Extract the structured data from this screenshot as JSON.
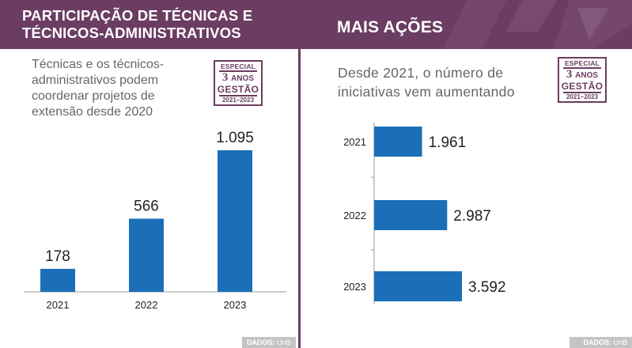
{
  "left": {
    "header": {
      "title_line1": "PARTICIPAÇÃO DE TÉCNICAS E",
      "title_line2": "TÉCNICOS-ADMINISTRATIVOS"
    },
    "subtitle_lines": [
      "Técnicas e os técnicos-",
      "administrativos podem",
      "coordenar projetos de",
      "extensão desde 2020"
    ],
    "source_label": "DADOS:",
    "source_value": "UnB"
  },
  "right": {
    "header": {
      "title": "MAIS AÇÕES"
    },
    "subtitle_lines": [
      "Desde 2021, o número de",
      "iniciativas vem aumentando"
    ],
    "source_label": "DADOS:",
    "source_value": "UnB"
  },
  "badge": {
    "line1": "ESPECIAL",
    "line2_big": "3",
    "line2_small": "ANOS",
    "line3": "GESTÃO",
    "line4": "2021–2023"
  },
  "colors": {
    "header": "#6b3d62",
    "bar": "#1a6fb8",
    "text": "#222222",
    "subtitle": "#666666",
    "source_bg": "#c4c4c4"
  },
  "chart_data": [
    {
      "type": "bar",
      "orientation": "vertical",
      "categories": [
        "2021",
        "2022",
        "2023"
      ],
      "values": [
        178,
        566,
        1095
      ],
      "value_labels": [
        "178",
        "566",
        "1.095"
      ]
    },
    {
      "type": "bar",
      "orientation": "horizontal",
      "categories": [
        "2021",
        "2022",
        "2023"
      ],
      "values": [
        1961,
        2987,
        3592
      ],
      "value_labels": [
        "1.961",
        "2.987",
        "3.592"
      ]
    }
  ]
}
